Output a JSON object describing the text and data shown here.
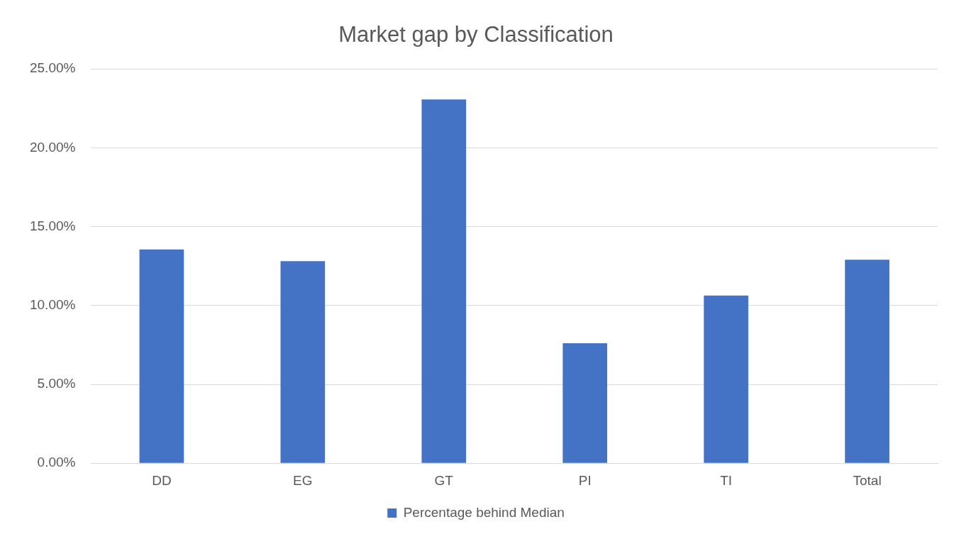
{
  "chart_data": {
    "type": "bar",
    "title": "Market gap by Classification",
    "categories": [
      "DD",
      "EG",
      "GT",
      "PI",
      "TI",
      "Total"
    ],
    "series": [
      {
        "name": "Percentage behind Median",
        "color": "#4472c4",
        "values": [
          13.56,
          12.81,
          23.06,
          7.61,
          10.63,
          12.9
        ]
      }
    ],
    "ylim": [
      0,
      25
    ],
    "yticks": [
      {
        "value": 0,
        "label": "0.00%"
      },
      {
        "value": 5,
        "label": "5.00%"
      },
      {
        "value": 10,
        "label": "10.00%"
      },
      {
        "value": 15,
        "label": "15.00%"
      },
      {
        "value": 20,
        "label": "20.00%"
      },
      {
        "value": 25,
        "label": "25.00%"
      }
    ],
    "grid": "y",
    "legend": "bottom"
  }
}
